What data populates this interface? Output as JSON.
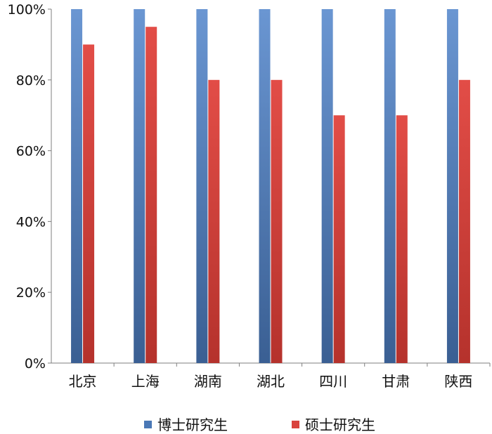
{
  "chart_data": {
    "type": "bar",
    "categories": [
      "北京",
      "上海",
      "湖南",
      "湖北",
      "四川",
      "甘肃",
      "陕西"
    ],
    "series": [
      {
        "name": "博士研究生",
        "values": [
          100,
          100,
          100,
          100,
          100,
          100,
          100
        ],
        "color": "#4a78b6"
      },
      {
        "name": "硕士研究生",
        "values": [
          90,
          95,
          80,
          80,
          70,
          70,
          80
        ],
        "color": "#d9433d"
      }
    ],
    "ylim": [
      0,
      100
    ],
    "yticks": [
      0,
      20,
      40,
      60,
      80,
      100
    ],
    "ytick_labels": [
      "0%",
      "20%",
      "40%",
      "60%",
      "80%",
      "100%"
    ],
    "grid": false,
    "legend": "bottom"
  }
}
